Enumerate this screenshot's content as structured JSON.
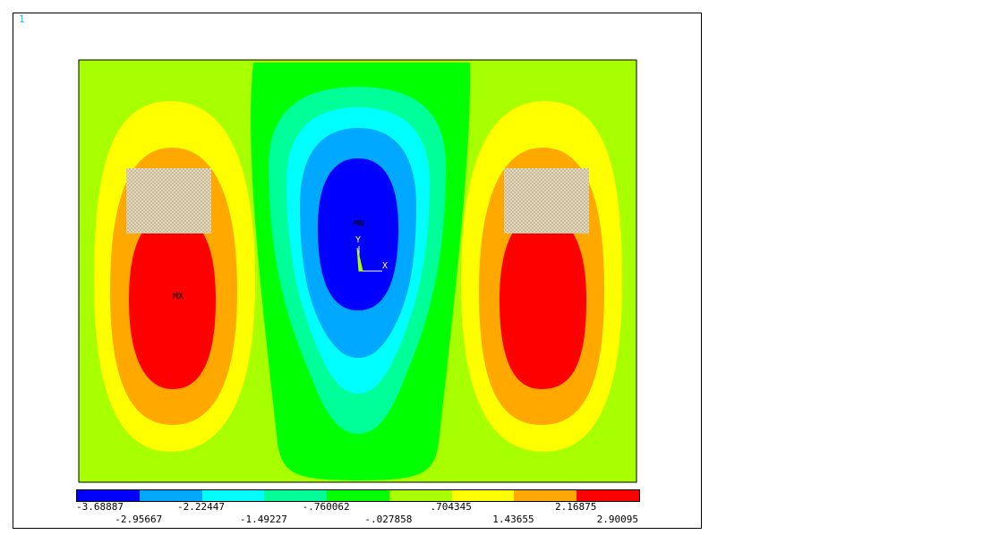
{
  "window": {
    "number": "1"
  },
  "plot": {
    "colors": {
      "c1": "#0000ff",
      "c2": "#00a8ff",
      "c3": "#00ffff",
      "c4": "#00ff99",
      "c5": "#00ff00",
      "c6": "#a8ff00",
      "c7": "#ffff00",
      "c8": "#ffa800",
      "c9": "#ff0000",
      "hatch": "#d8c8a8"
    },
    "labels": {
      "mn": "MN",
      "mx": "MX",
      "axis_y": "Y",
      "axis_x": "X"
    }
  },
  "legend": {
    "values": [
      "-3.68887",
      "-2.95667",
      "-2.22447",
      "-1.49227",
      "-.760062",
      "-.027858",
      ".704345",
      "1.43655",
      "2.16875",
      "2.90095"
    ],
    "colors": [
      "#0000ff",
      "#00a8ff",
      "#00ffff",
      "#00ff99",
      "#00ff00",
      "#a8ff00",
      "#ffff00",
      "#ffa800",
      "#ff0000"
    ]
  }
}
